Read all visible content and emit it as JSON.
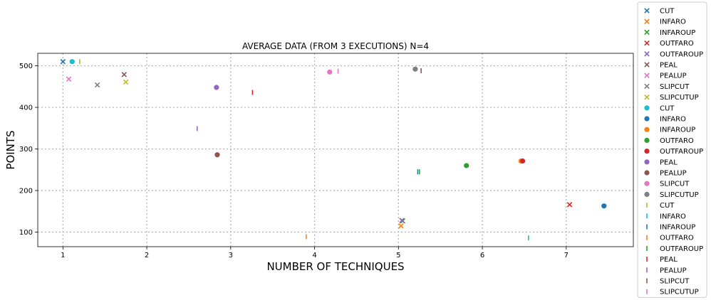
{
  "chart_data": {
    "type": "scatter",
    "title": "AVERAGE DATA (FROM 3 EXECUTIONS) N=4",
    "xlabel": "NUMBER OF TECHNIQUES",
    "ylabel": "POINTS",
    "xlim": [
      0.7,
      7.8
    ],
    "ylim": [
      65,
      530
    ],
    "xticks": [
      1,
      2,
      3,
      4,
      5,
      6,
      7
    ],
    "yticks": [
      100,
      200,
      300,
      400,
      500
    ],
    "grid": true,
    "grid_style": "dotted",
    "legend_position": "outside-right",
    "series": [
      {
        "name": "CUT",
        "marker": "x",
        "color": "#1f77b4",
        "points": [
          [
            1.0,
            510
          ]
        ]
      },
      {
        "name": "INFARO",
        "marker": "x",
        "color": "#ff7f0e",
        "points": [
          [
            5.03,
            115
          ]
        ]
      },
      {
        "name": "INFAROUP",
        "marker": "x",
        "color": "#2ca02c",
        "points": [
          [
            5.05,
            127
          ]
        ]
      },
      {
        "name": "OUTFARO",
        "marker": "x",
        "color": "#d62728",
        "points": [
          [
            7.04,
            166
          ]
        ]
      },
      {
        "name": "OUTFAROUP",
        "marker": "x",
        "color": "#9467bd",
        "points": [
          [
            5.04,
            128
          ]
        ]
      },
      {
        "name": "PEAL",
        "marker": "x",
        "color": "#8c564b",
        "points": [
          [
            1.73,
            479
          ]
        ]
      },
      {
        "name": "PEALUP",
        "marker": "x",
        "color": "#e377c2",
        "points": [
          [
            1.07,
            468
          ]
        ]
      },
      {
        "name": "SLIPCUT",
        "marker": "x",
        "color": "#7f7f7f",
        "points": [
          [
            1.41,
            454
          ]
        ]
      },
      {
        "name": "SLIPCUTUP",
        "marker": "x",
        "color": "#bcbd22",
        "points": [
          [
            1.75,
            461
          ]
        ]
      },
      {
        "name": "CUT",
        "marker": "o",
        "color": "#17becf",
        "points": [
          [
            1.11,
            510
          ]
        ]
      },
      {
        "name": "INFARO",
        "marker": "o",
        "color": "#1f77b4",
        "points": [
          [
            7.45,
            163
          ]
        ]
      },
      {
        "name": "INFAROUP",
        "marker": "o",
        "color": "#ff7f0e",
        "points": [
          [
            6.46,
            271
          ]
        ]
      },
      {
        "name": "OUTFARO",
        "marker": "o",
        "color": "#2ca02c",
        "points": [
          [
            5.81,
            260
          ]
        ]
      },
      {
        "name": "OUTFAROUP",
        "marker": "o",
        "color": "#d62728",
        "points": [
          [
            6.48,
            271
          ]
        ]
      },
      {
        "name": "PEAL",
        "marker": "o",
        "color": "#9467bd",
        "points": [
          [
            2.83,
            448
          ]
        ]
      },
      {
        "name": "PEALUP",
        "marker": "o",
        "color": "#8c564b",
        "points": [
          [
            2.84,
            286
          ]
        ]
      },
      {
        "name": "SLIPCUT",
        "marker": "o",
        "color": "#e377c2",
        "points": [
          [
            4.18,
            485
          ]
        ]
      },
      {
        "name": "SLIPCUTUP",
        "marker": "o",
        "color": "#7f7f7f",
        "points": [
          [
            5.2,
            492
          ]
        ]
      },
      {
        "name": "CUT",
        "marker": "|",
        "color": "#bcbd22",
        "points": [
          [
            1.2,
            510
          ]
        ]
      },
      {
        "name": "INFARO",
        "marker": "|",
        "color": "#17becf",
        "points": [
          [
            6.55,
            86
          ]
        ]
      },
      {
        "name": "INFAROUP",
        "marker": "|",
        "color": "#1f77b4",
        "points": [
          [
            5.23,
            245
          ]
        ]
      },
      {
        "name": "OUTFARO",
        "marker": "|",
        "color": "#ff7f0e",
        "points": [
          [
            3.9,
            89
          ]
        ]
      },
      {
        "name": "OUTFAROUP",
        "marker": "|",
        "color": "#2ca02c",
        "points": [
          [
            5.25,
            245
          ]
        ]
      },
      {
        "name": "PEAL",
        "marker": "|",
        "color": "#d62728",
        "points": [
          [
            3.26,
            436
          ]
        ]
      },
      {
        "name": "PEALUP",
        "marker": "|",
        "color": "#9467bd",
        "points": [
          [
            2.6,
            349
          ]
        ]
      },
      {
        "name": "SLIPCUT",
        "marker": "|",
        "color": "#8c564b",
        "points": [
          [
            5.27,
            488
          ]
        ]
      },
      {
        "name": "SLIPCUTUP",
        "marker": "|",
        "color": "#e377c2",
        "points": [
          [
            4.28,
            487
          ]
        ]
      }
    ]
  }
}
